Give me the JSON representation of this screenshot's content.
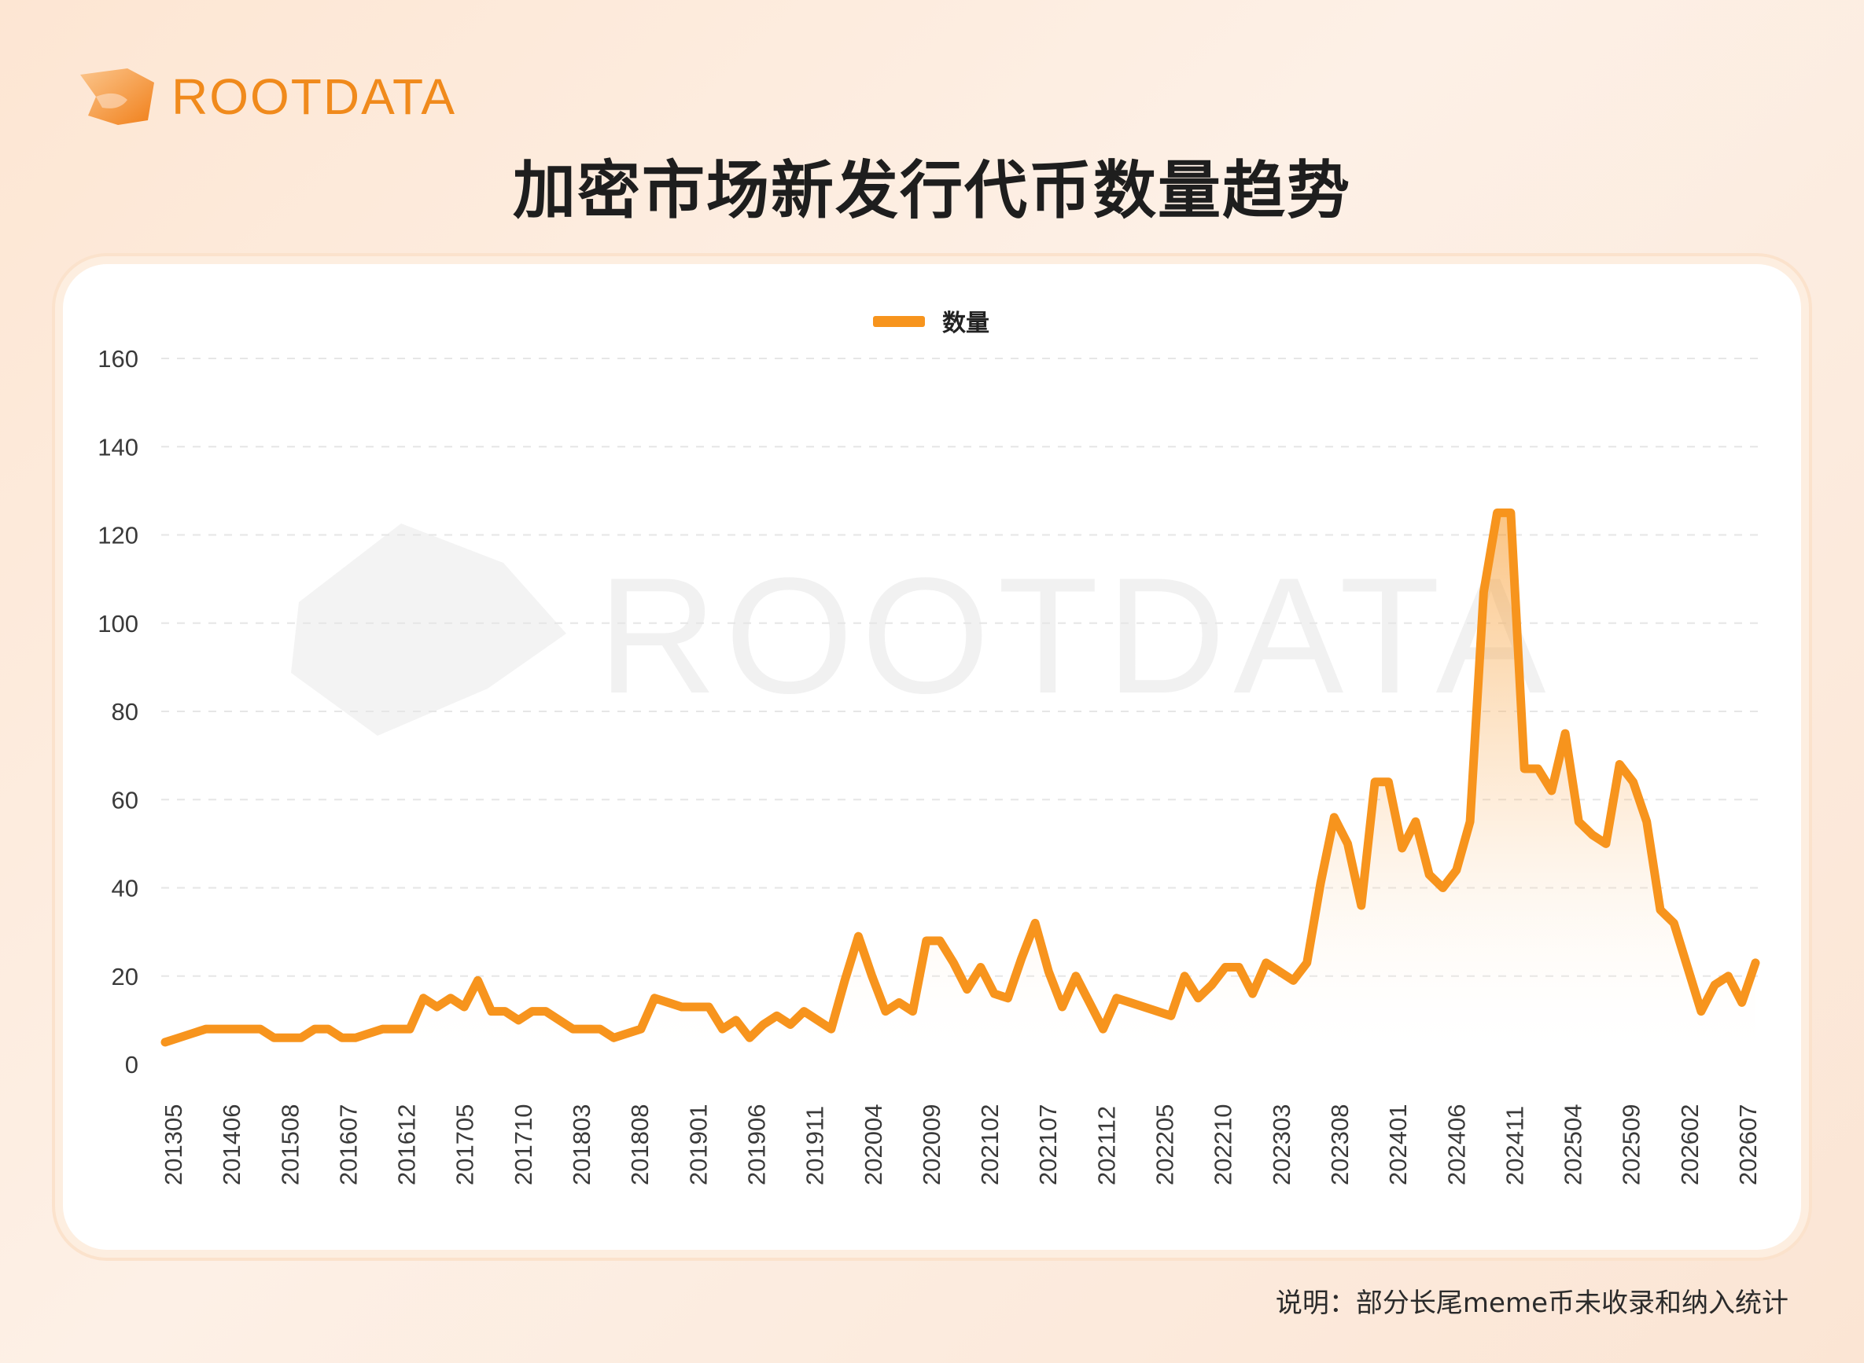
{
  "brand": {
    "logo_text": "ROOTDATA",
    "watermark_text": "ROOTDATA"
  },
  "title": "加密市场新发行代币数量趋势",
  "note": "说明：部分长尾meme币未收录和纳入统计",
  "colors": {
    "line": "#f7941d",
    "accent": "#f08a1c",
    "grid": "#e6e6e6"
  },
  "chart_data": {
    "type": "area",
    "title": "加密市场新发行代币数量趋势",
    "xlabel": "",
    "ylabel": "",
    "ylim": [
      0,
      160
    ],
    "yticks": [
      0,
      20,
      40,
      60,
      80,
      100,
      120,
      140,
      160
    ],
    "xtick_labels": [
      "201305",
      "201406",
      "201508",
      "201607",
      "201612",
      "201705",
      "201710",
      "201803",
      "201808",
      "201901",
      "201906",
      "201911",
      "202004",
      "202009",
      "202102",
      "202107",
      "202112",
      "202205",
      "202210",
      "202303",
      "202308",
      "202401",
      "202406",
      "202411",
      "202504",
      "202509",
      "202602",
      "202607"
    ],
    "grid": "horizontal-dashed",
    "legend": "top-center",
    "series": [
      {
        "name": "数量",
        "color": "#f7941d",
        "values": [
          5,
          6,
          7,
          8,
          8,
          8,
          8,
          8,
          6,
          6,
          6,
          8,
          8,
          6,
          6,
          7,
          8,
          8,
          8,
          15,
          13,
          15,
          13,
          19,
          12,
          12,
          10,
          12,
          12,
          10,
          8,
          8,
          8,
          6,
          7,
          8,
          15,
          14,
          13,
          13,
          13,
          8,
          10,
          6,
          9,
          11,
          9,
          12,
          10,
          8,
          19,
          29,
          20,
          12,
          14,
          12,
          28,
          28,
          23,
          17,
          22,
          16,
          15,
          24,
          32,
          21,
          13,
          20,
          14,
          8,
          15,
          14,
          13,
          12,
          11,
          20,
          15,
          18,
          22,
          22,
          16,
          23,
          21,
          19,
          23,
          41,
          56,
          50,
          36,
          64,
          64,
          49,
          55,
          43,
          40,
          44,
          55,
          107,
          125,
          125,
          67,
          67,
          62,
          75,
          55,
          52,
          50,
          68,
          64,
          55,
          35,
          32,
          22,
          12,
          18,
          20,
          14,
          23
        ],
        "x_labels_every": 4.3
      }
    ]
  }
}
